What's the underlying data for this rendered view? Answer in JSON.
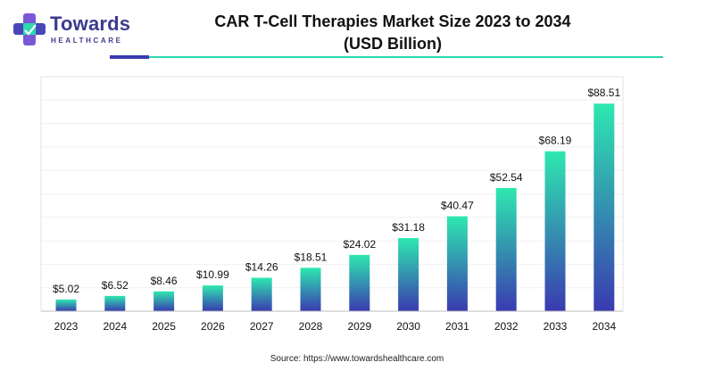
{
  "logo": {
    "name": "Towards",
    "tagline": "HEALTHCARE"
  },
  "chart_data": {
    "type": "bar",
    "title_line1": "CAR T-Cell Therapies Market Size 2023 to 2034",
    "title_line2": "(USD Billion)",
    "categories": [
      "2023",
      "2024",
      "2025",
      "2026",
      "2027",
      "2028",
      "2029",
      "2030",
      "2031",
      "2032",
      "2033",
      "2034"
    ],
    "values": [
      5.02,
      6.52,
      8.46,
      10.99,
      14.26,
      18.51,
      24.02,
      31.18,
      40.47,
      52.54,
      68.19,
      88.51
    ],
    "value_labels": [
      "$5.02",
      "$6.52",
      "$8.46",
      "$10.99",
      "$14.26",
      "$18.51",
      "$24.02",
      "$31.18",
      "$40.47",
      "$52.54",
      "$68.19",
      "$88.51"
    ],
    "xlabel": "",
    "ylabel": "",
    "ylim": [
      0,
      100
    ],
    "grid": true,
    "bar_gradient": {
      "top": "#2ee8b0",
      "bottom": "#3a3ab0"
    }
  },
  "source": "Source: https://www.towardshealthcare.com"
}
